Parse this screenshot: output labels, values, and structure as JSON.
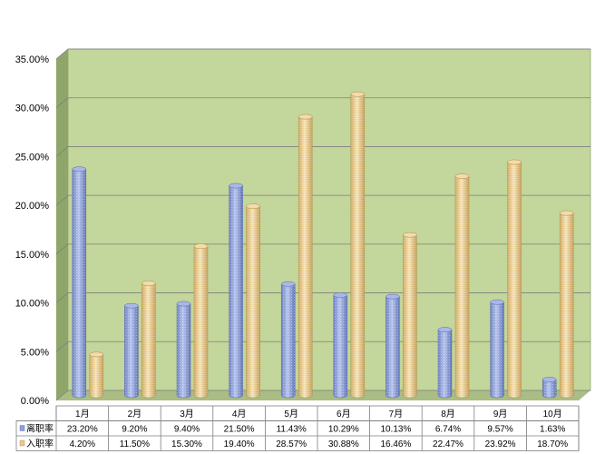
{
  "chart_data": {
    "type": "bar",
    "style": "3d-cylinder",
    "categories": [
      "1月",
      "2月",
      "3月",
      "4月",
      "5月",
      "6月",
      "7月",
      "8月",
      "9月",
      "10月"
    ],
    "series": [
      {
        "name": "离职率",
        "values": [
          23.2,
          9.2,
          9.4,
          21.5,
          11.43,
          10.29,
          10.13,
          6.74,
          9.57,
          1.63
        ],
        "labels": [
          "23.20%",
          "9.20%",
          "9.40%",
          "21.50%",
          "11.43%",
          "10.29%",
          "10.13%",
          "6.74%",
          "9.57%",
          "1.63%"
        ],
        "color": "#8ea0d8"
      },
      {
        "name": "入职率",
        "values": [
          4.2,
          11.5,
          15.3,
          19.4,
          28.57,
          30.88,
          16.46,
          22.47,
          23.92,
          18.7
        ],
        "labels": [
          "4.20%",
          "11.50%",
          "15.30%",
          "19.40%",
          "28.57%",
          "30.88%",
          "16.46%",
          "22.47%",
          "23.92%",
          "18.70%"
        ],
        "color": "#e8c98a"
      }
    ],
    "yticks": [
      "0.00%",
      "5.00%",
      "10.00%",
      "15.00%",
      "20.00%",
      "25.00%",
      "30.00%",
      "35.00%"
    ],
    "ylim": [
      0,
      35
    ],
    "grid": true,
    "legend": "data-table-below",
    "colors": {
      "plot_background": "#c3d69b",
      "side_wall": "#8fa66a",
      "floor": "#a9bd84",
      "gridline": "#7f7f7f"
    }
  }
}
